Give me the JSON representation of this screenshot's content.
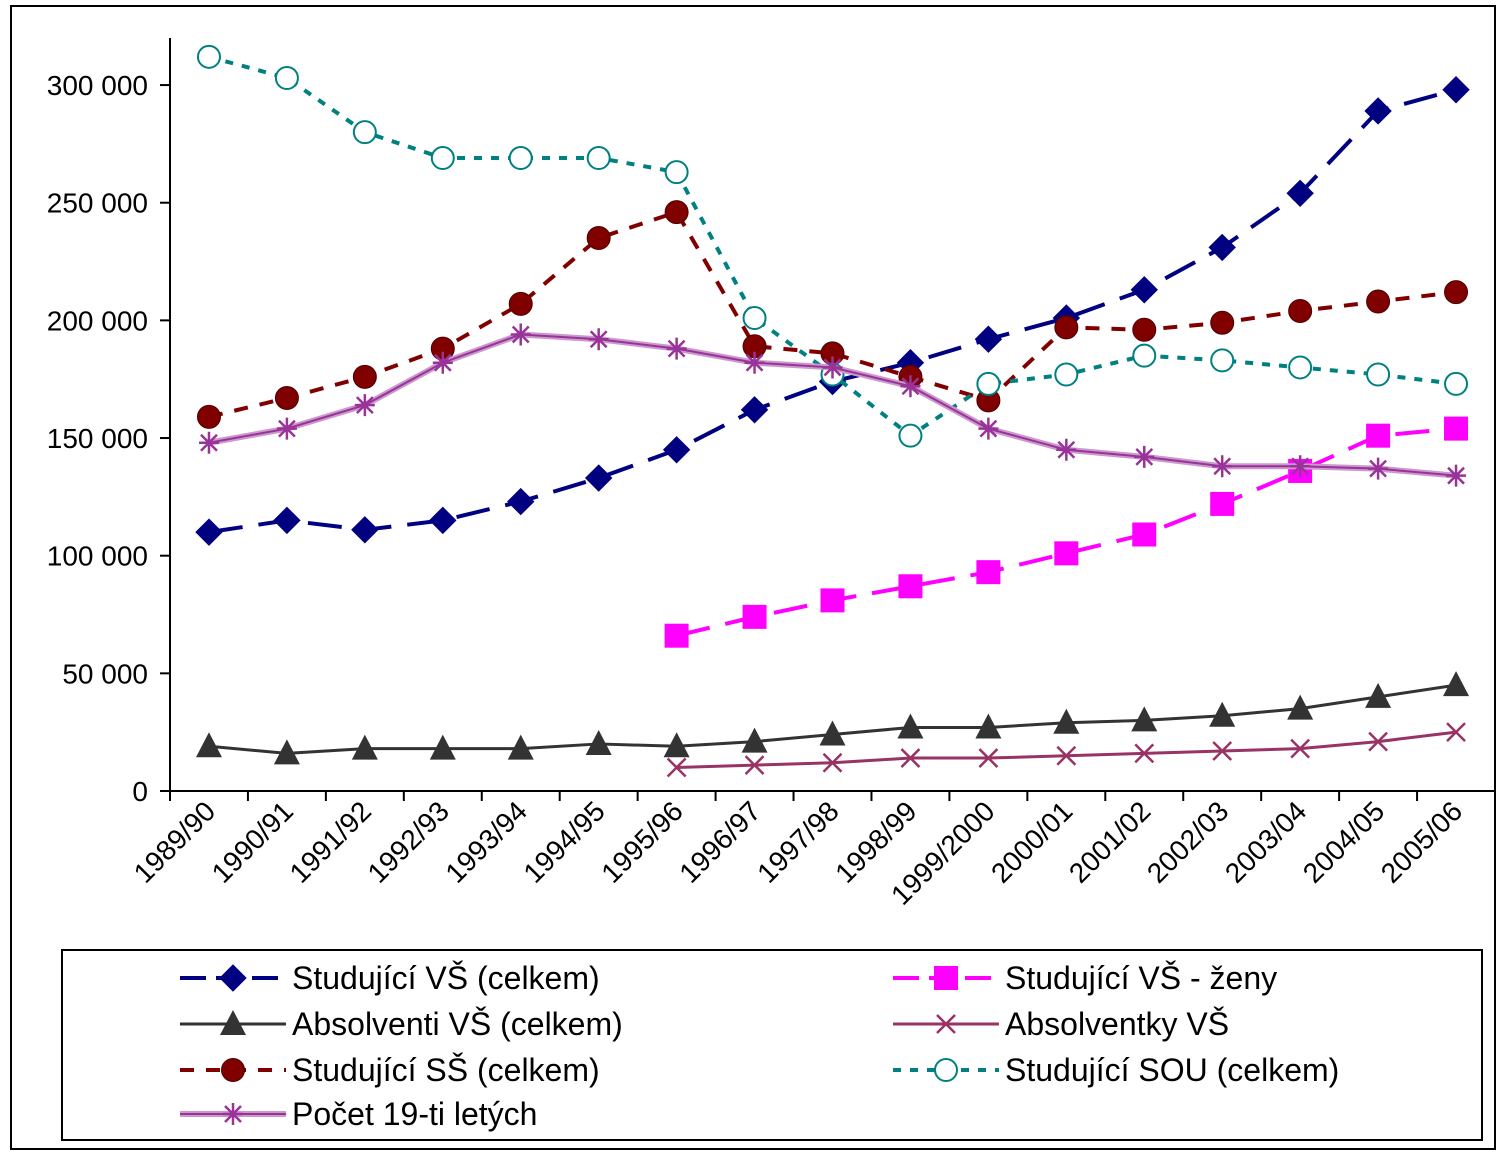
{
  "chart_data": {
    "type": "line",
    "title": "",
    "xlabel": "",
    "ylabel": "",
    "categories": [
      "1989/90",
      "1990/91",
      "1991/92",
      "1992/93",
      "1993/94",
      "1994/95",
      "1995/96",
      "1996/97",
      "1997/98",
      "1998/99",
      "1999/2000",
      "2000/01",
      "2001/02",
      "2002/03",
      "2003/04",
      "2004/05",
      "2005/06"
    ],
    "ylim": [
      0,
      320000
    ],
    "yticks": [
      0,
      50000,
      100000,
      150000,
      200000,
      250000,
      300000
    ],
    "ytick_labels": [
      "0",
      "50 000",
      "100 000",
      "150 000",
      "200 000",
      "250 000",
      "300 000"
    ],
    "grid": false,
    "legend_position": "bottom",
    "series": [
      {
        "name": "Studující VŠ (celkem)",
        "color": "#000080",
        "marker": "diamond",
        "line": "longdash",
        "values": [
          110000,
          115000,
          111000,
          115000,
          123000,
          133000,
          145000,
          162000,
          174000,
          182000,
          192000,
          201000,
          213000,
          231000,
          254000,
          289000,
          298000
        ]
      },
      {
        "name": "Studující VŠ - ženy",
        "color": "#ff00ff",
        "marker": "square",
        "line": "longdash",
        "values": [
          null,
          null,
          null,
          null,
          null,
          null,
          66000,
          74000,
          81000,
          87000,
          93000,
          101000,
          109000,
          122000,
          136000,
          151000,
          154000
        ]
      },
      {
        "name": "Absolventi VŠ (celkem)",
        "color": "#333333",
        "marker": "triangle",
        "line": "solid",
        "values": [
          19000,
          16000,
          18000,
          18000,
          18000,
          20000,
          19000,
          21000,
          24000,
          27000,
          27000,
          29000,
          30000,
          32000,
          35000,
          40000,
          45000
        ]
      },
      {
        "name": "Absolventky VŠ",
        "color": "#993366",
        "marker": "x",
        "line": "solid",
        "values": [
          null,
          null,
          null,
          null,
          null,
          null,
          10000,
          11000,
          12000,
          14000,
          14000,
          15000,
          16000,
          17000,
          18000,
          21000,
          25000
        ]
      },
      {
        "name": "Studující SŠ (celkem)",
        "color": "#800000",
        "marker": "circle",
        "line": "dash",
        "values": [
          159000,
          167000,
          176000,
          188000,
          207000,
          235000,
          246000,
          189000,
          186000,
          176000,
          166000,
          197000,
          196000,
          199000,
          204000,
          208000,
          212000
        ]
      },
      {
        "name": "Studující SOU (celkem)",
        "color": "#008080",
        "marker": "circle-open",
        "line": "dot",
        "values": [
          312000,
          303000,
          280000,
          269000,
          269000,
          269000,
          263000,
          201000,
          177000,
          151000,
          173000,
          177000,
          185000,
          183000,
          180000,
          177000,
          173000
        ]
      },
      {
        "name": "Počet 19-ti letých",
        "color": "#993399",
        "marker": "star",
        "line": "solid",
        "values": [
          148000,
          154000,
          164000,
          182000,
          194000,
          192000,
          188000,
          182000,
          180000,
          172000,
          154000,
          145000,
          142000,
          138000,
          138000,
          137000,
          134000
        ]
      }
    ]
  }
}
